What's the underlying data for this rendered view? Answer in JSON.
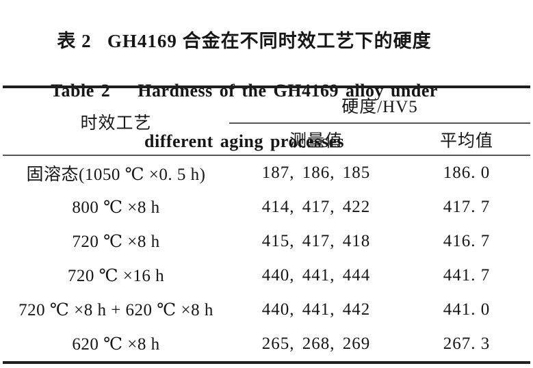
{
  "title": {
    "zh": "表 2   GH4169 合金在不同时效工艺下的硬度",
    "en_line1": "Table 2    Hardness of the GH4169 alloy under",
    "en_line2": "different aging processes"
  },
  "table": {
    "header": {
      "process": "时效工艺",
      "hardness_group": "硬度/HV5",
      "measured": "测量值",
      "average": "平均值"
    },
    "rows": [
      {
        "process": "固溶态(1050 ℃ ×0. 5 h)",
        "measured": "187, 186, 185",
        "average": "186. 0"
      },
      {
        "process": "800 ℃ ×8 h",
        "measured": "414, 417, 422",
        "average": "417. 7"
      },
      {
        "process": "720 ℃ ×8 h",
        "measured": "415, 417, 418",
        "average": "416. 7"
      },
      {
        "process": "720 ℃ ×16 h",
        "measured": "440, 441, 444",
        "average": "441. 7"
      },
      {
        "process": "720 ℃ ×8 h + 620 ℃ ×8 h",
        "measured": "440, 441, 442",
        "average": "441. 0"
      },
      {
        "process": "620 ℃ ×8 h",
        "measured": "265, 268, 269",
        "average": "267. 3"
      }
    ],
    "ink_color": "#1f1f1f",
    "thin_rule_color": "#555555"
  }
}
